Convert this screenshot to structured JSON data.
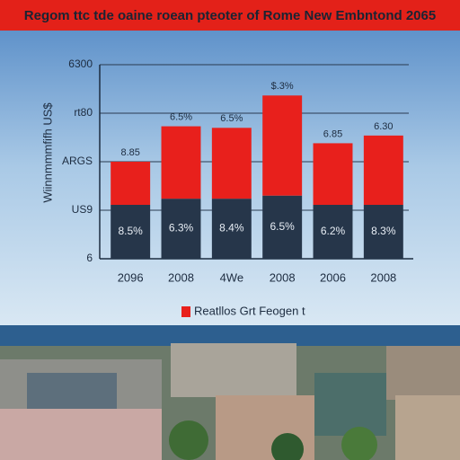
{
  "chart_data": {
    "type": "bar",
    "stacked": true,
    "title": "Regom ttc tde oaine roean pteoter of Rome New Embntond 2065",
    "ylabel": "Wiinnmmmfifh US$",
    "categories": [
      "2096",
      "2008",
      "4We",
      "2008",
      "2006",
      "2008"
    ],
    "series": [
      {
        "color": "#26364a",
        "values": [
          1750,
          1950,
          1950,
          2050,
          1750,
          1750
        ]
      },
      {
        "name": "Reatllos Grt Feogen t",
        "color": "#e8201c",
        "values": [
          1400,
          2350,
          2300,
          3250,
          2000,
          2250
        ]
      }
    ],
    "annotations": {
      "top": [
        "8.85",
        "6.5%",
        "6.5%",
        "$.3%",
        "6.85",
        "6.30"
      ],
      "inside": [
        "8.5%",
        "6.3%",
        "8.4%",
        "6.5%",
        "6.2%",
        "8.3%"
      ]
    },
    "ylim": [
      0,
      6300
    ],
    "yticks": [
      {
        "value": 0,
        "label": "6"
      },
      {
        "value": 1575,
        "label": "US9"
      },
      {
        "value": 3150,
        "label": "ARGS"
      },
      {
        "value": 4725,
        "label": "rt80"
      },
      6300
    ],
    "grid": true
  }
}
